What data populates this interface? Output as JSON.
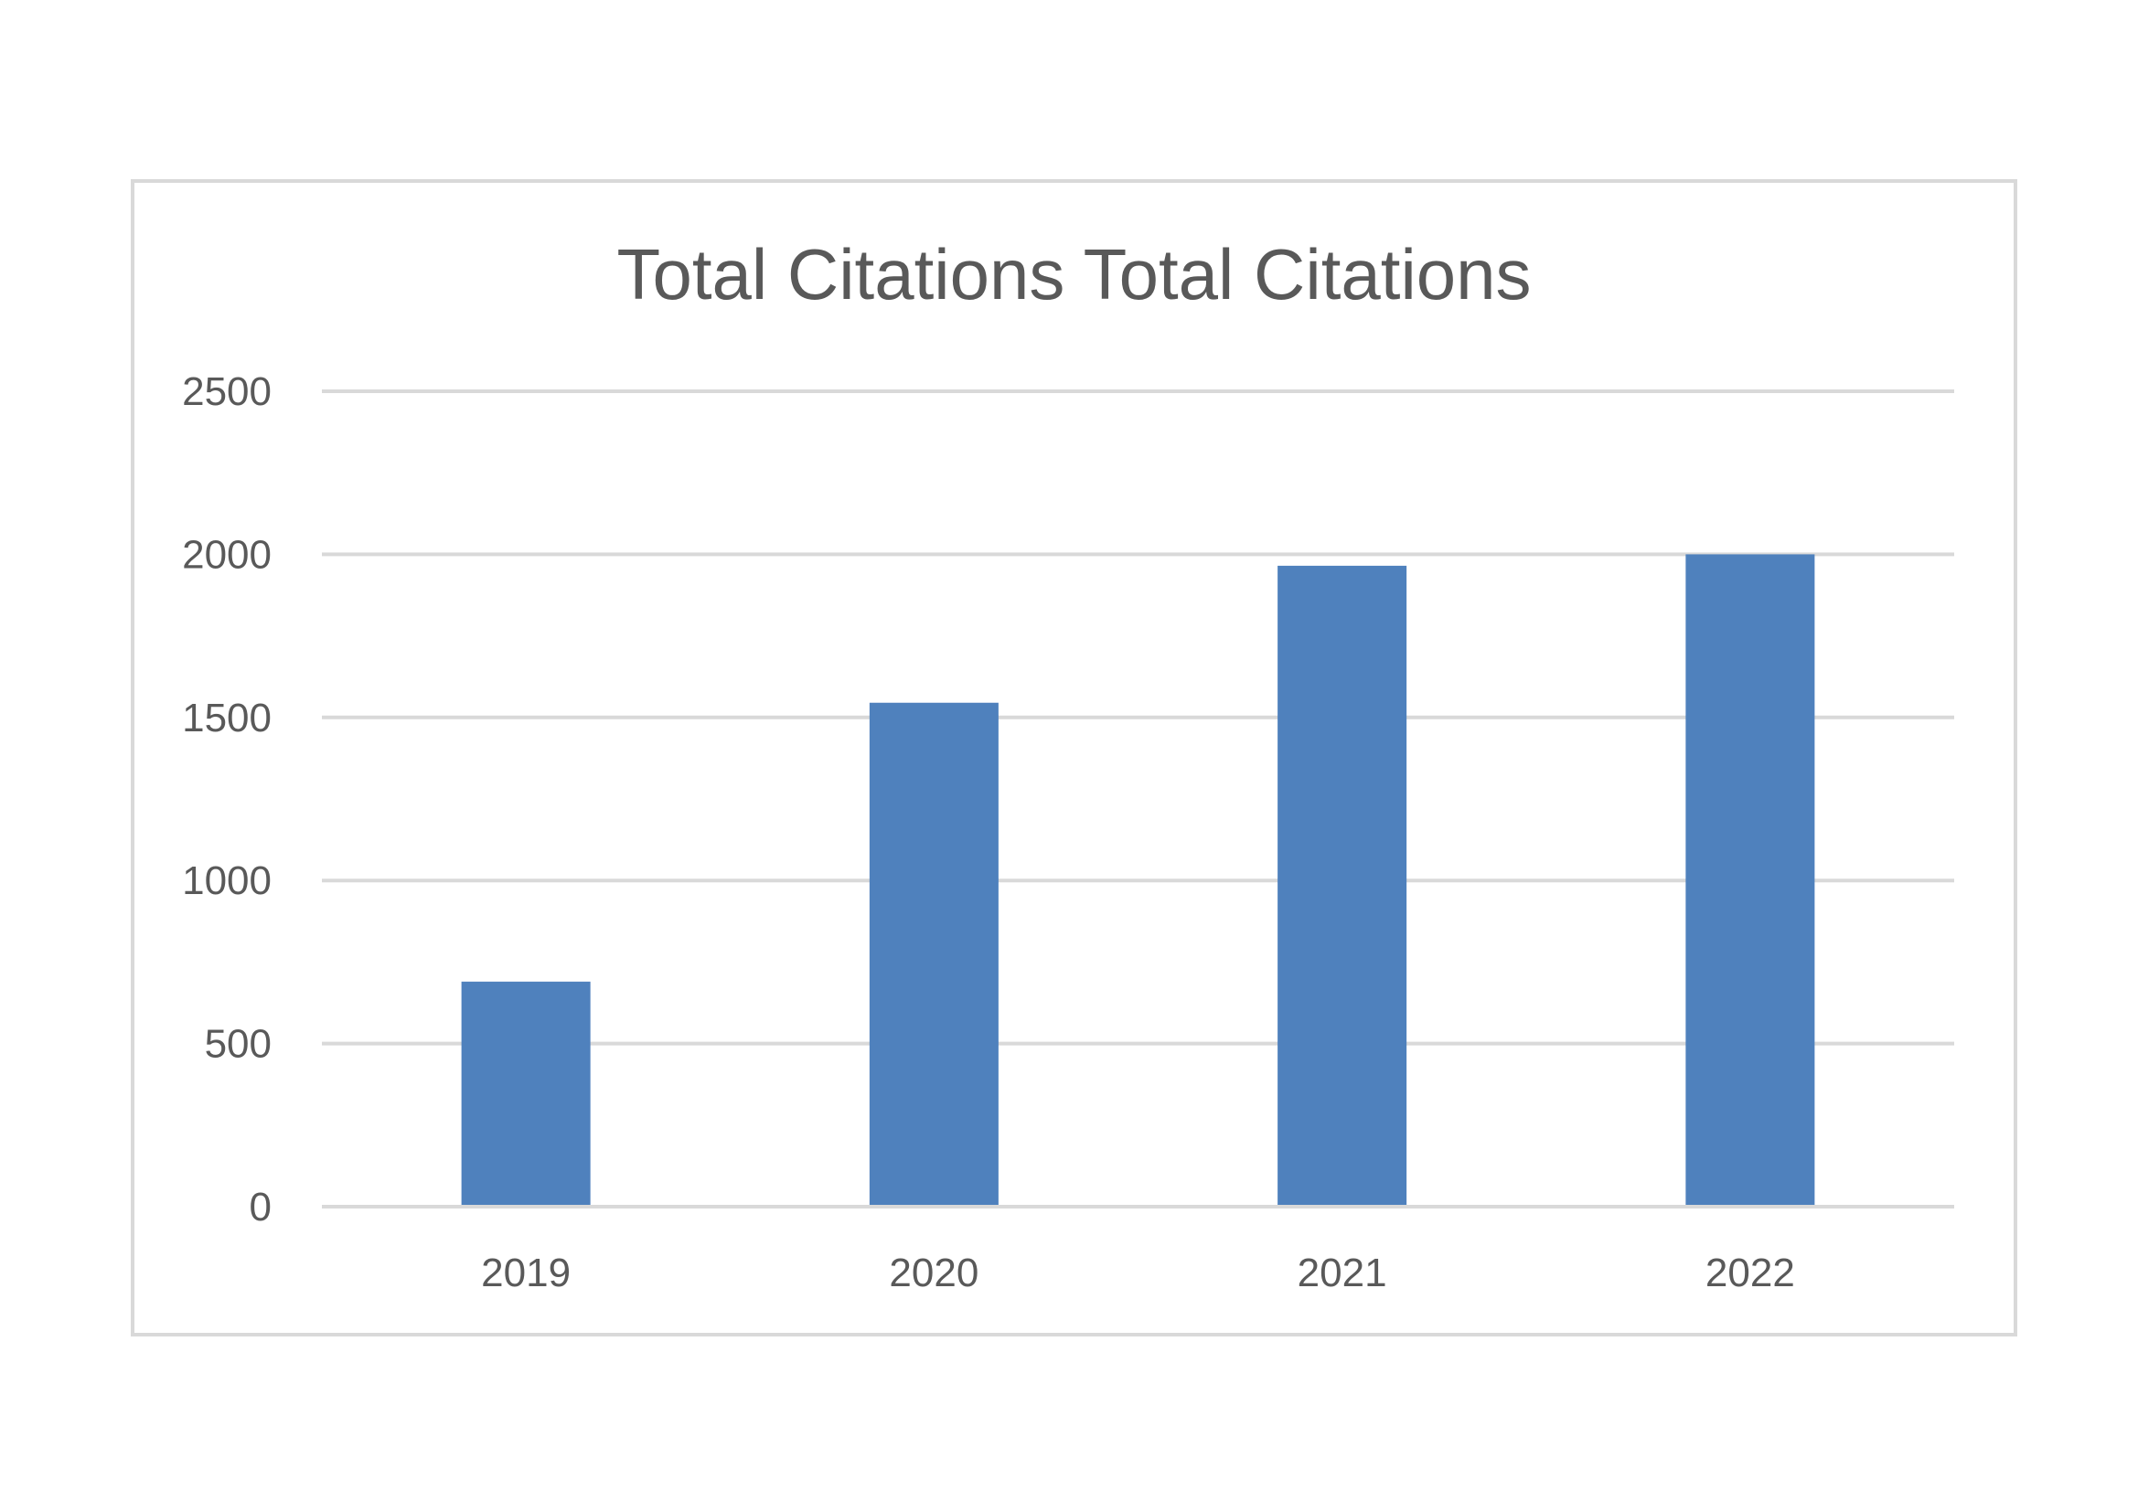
{
  "chart_data": {
    "type": "bar",
    "title": "Total Citations Total Citations",
    "categories": [
      "2019",
      "2020",
      "2021",
      "2022"
    ],
    "values": [
      690,
      1545,
      1965,
      2000
    ],
    "xlabel": "",
    "ylabel": "",
    "ylim": [
      0,
      2500
    ],
    "yticks": [
      "0",
      "500",
      "1000",
      "1500",
      "2000",
      "2500"
    ],
    "grid": true,
    "legend": "none",
    "colors": {
      "bar": "#4f81bd",
      "grid": "#d9d9d9",
      "text": "#595959",
      "border": "#d9d9d9"
    }
  }
}
